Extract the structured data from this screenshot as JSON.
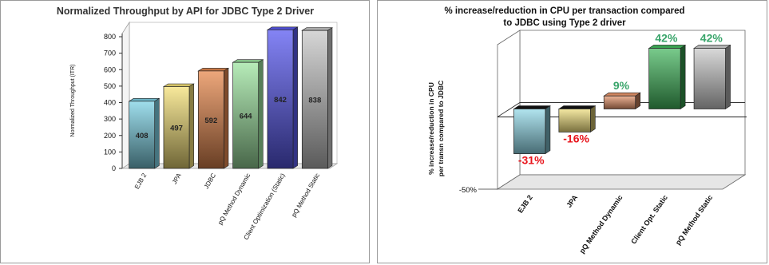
{
  "chart_data": [
    {
      "type": "bar",
      "title": "Normalized Throughput by API for JDBC Type 2 Driver",
      "ylabel": "Normalized Throughput (ITR)",
      "categories": [
        "EJB 2",
        "JPA",
        "JDBC",
        "pQ Method Dynamic",
        "Client Optimization (Static)",
        "pQ Method Static"
      ],
      "values": [
        408,
        497,
        592,
        644,
        842,
        838
      ],
      "ylim": [
        0,
        800
      ],
      "yticks": [
        "0",
        "100",
        "200",
        "300",
        "400",
        "500",
        "600",
        "700",
        "800"
      ],
      "grid": false,
      "colors": [
        "#7fd3e6",
        "#f6e27a",
        "#e7894f",
        "#9fe6a2",
        "#5b5bf2",
        "#c8c8c8"
      ]
    },
    {
      "type": "bar",
      "title": "% increase/reduction in CPU per transaction compared to JDBC using Type 2 driver",
      "ylabel": "% increase/reduction in CPU per transn compared to JDBC",
      "categories": [
        "EJB 2",
        "JPA",
        "pQ Method Dynamic",
        "Client Opt. Static",
        "pQ Method Static"
      ],
      "values": [
        -31,
        -16,
        9,
        42,
        42
      ],
      "data_labels": [
        "-31%",
        "-16%",
        "9%",
        "42%",
        "42%"
      ],
      "ylim": [
        -50,
        50
      ],
      "yticks": [
        "-50%"
      ],
      "grid": false,
      "colors": [
        "#8fd8e8",
        "#f1df7c",
        "#e6946a",
        "#3fb45a",
        "#c8c8c8"
      ]
    }
  ]
}
